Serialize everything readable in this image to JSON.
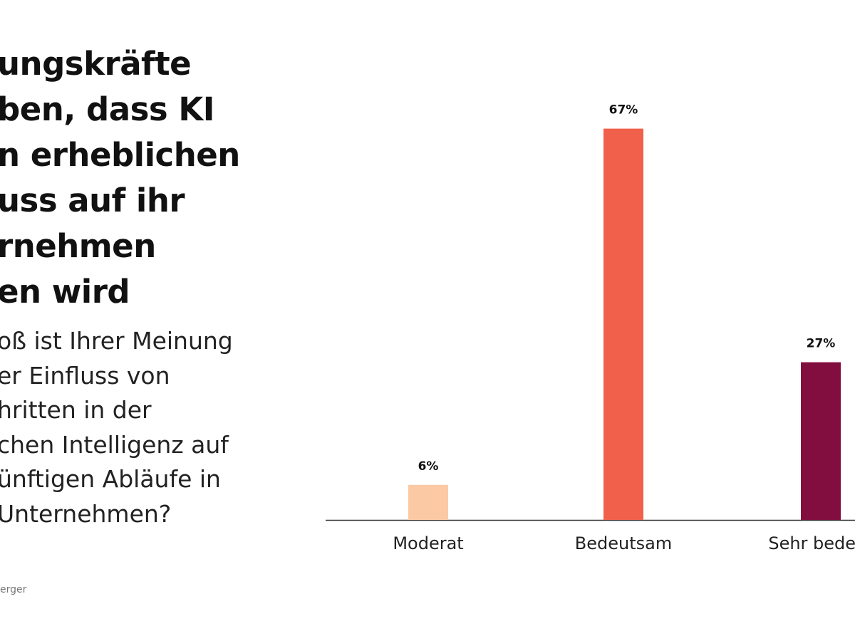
{
  "title_lines": [
    "ungskräfte",
    "ben, dass KI",
    "n erheblichen",
    "uss auf ihr",
    "rnehmen",
    "en wird"
  ],
  "subtitle_lines": [
    "oß ist Ihrer Meinung",
    "er Einfluss von",
    "hritten in der",
    "chen Intelligenz auf",
    "ünftigen Abläufe in",
    "Unternehmen?"
  ],
  "source": "erger",
  "chart_data": {
    "type": "bar",
    "categories": [
      "Moderat",
      "Bedeutsam",
      "Sehr bedeut"
    ],
    "values": [
      6,
      67,
      27
    ],
    "value_labels": [
      "6%",
      "67%",
      "27%"
    ],
    "colors": [
      "#fbc9a3",
      "#f0604b",
      "#820d3f"
    ],
    "ylim": [
      0,
      70
    ],
    "grid": false
  }
}
